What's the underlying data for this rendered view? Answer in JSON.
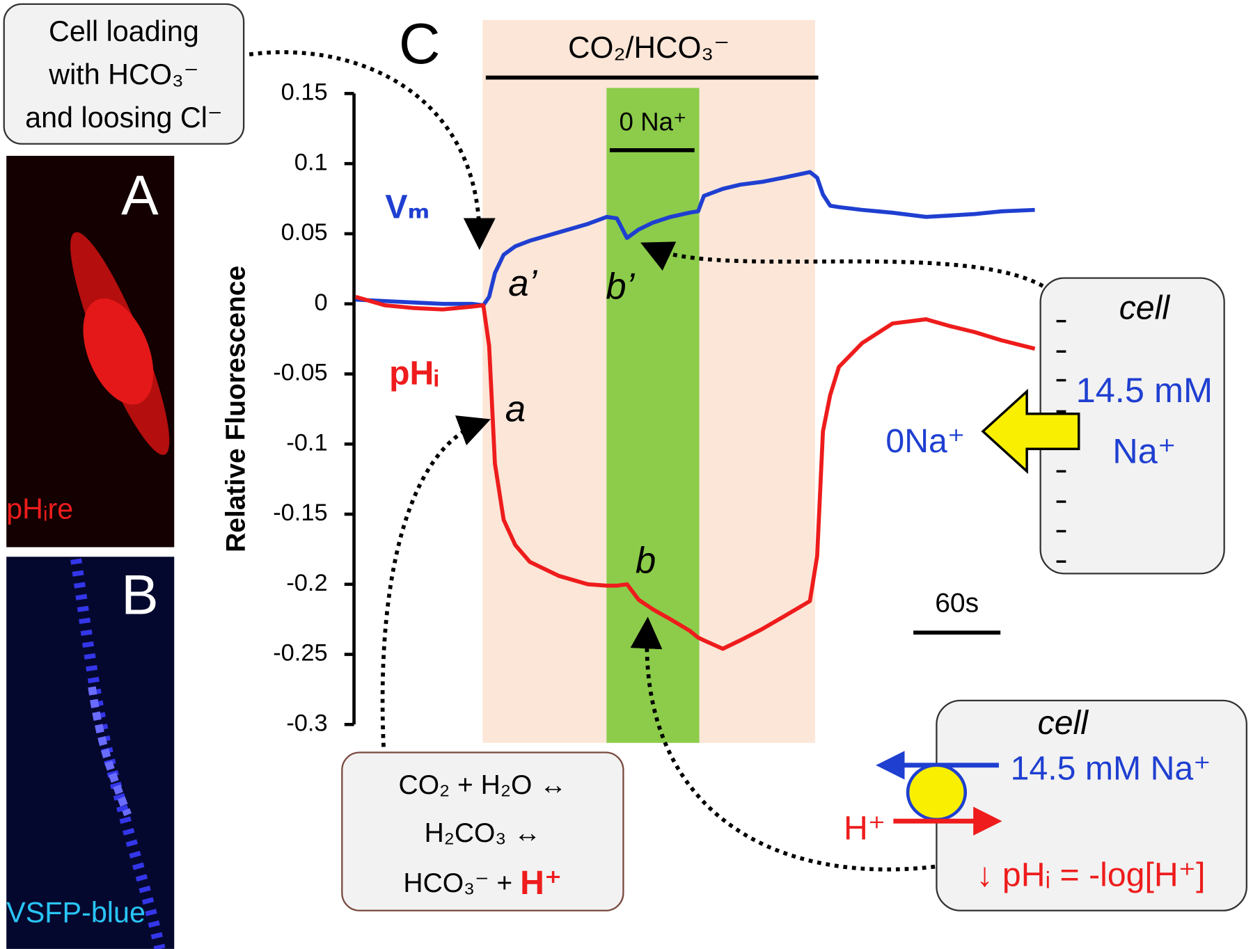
{
  "chart_data": {
    "type": "line",
    "title": "C",
    "ylabel": "Relative Fluorescence",
    "x": [
      0,
      20,
      40,
      60,
      80,
      88,
      92,
      96,
      102,
      110,
      120,
      140,
      160,
      173,
      180,
      187,
      195,
      205,
      217,
      230,
      236,
      240,
      253,
      265,
      280,
      295,
      313,
      318,
      322,
      327,
      333,
      349,
      370,
      393,
      410,
      426,
      445,
      468
    ],
    "xlim": [
      0,
      468
    ],
    "ylim": [
      -0.3,
      0.15
    ],
    "yticks": [
      0.15,
      0.1,
      0.05,
      0,
      -0.05,
      -0.1,
      -0.15,
      -0.2,
      -0.25,
      -0.3
    ],
    "series": [
      {
        "name": "Vₘ",
        "color": "#1f3fd1",
        "values": [
          0.003,
          0.002,
          0.001,
          0.0,
          0.0,
          -0.001,
          0.005,
          0.022,
          0.035,
          0.041,
          0.045,
          0.051,
          0.057,
          0.062,
          0.061,
          0.047,
          0.053,
          0.058,
          0.062,
          0.065,
          0.066,
          0.077,
          0.082,
          0.085,
          0.087,
          0.09,
          0.094,
          0.09,
          0.078,
          0.07,
          0.069,
          0.067,
          0.065,
          0.062,
          0.063,
          0.064,
          0.066,
          0.067
        ]
      },
      {
        "name": "pHᵢ",
        "color": "#ee1c1c",
        "values": [
          0.005,
          -0.001,
          -0.003,
          -0.004,
          -0.002,
          -0.001,
          -0.03,
          -0.114,
          -0.154,
          -0.172,
          -0.184,
          -0.194,
          -0.2,
          -0.201,
          -0.201,
          -0.2,
          -0.211,
          -0.218,
          -0.225,
          -0.233,
          -0.238,
          -0.24,
          -0.246,
          -0.24,
          -0.232,
          -0.223,
          -0.212,
          -0.18,
          -0.091,
          -0.065,
          -0.045,
          -0.028,
          -0.014,
          -0.011,
          -0.016,
          -0.02,
          -0.026,
          -0.032
        ]
      }
    ],
    "bands": [
      {
        "label": "CO₂/HCO₃⁻",
        "start": 87.5,
        "end": 316.6,
        "color": "#fbe6d8"
      },
      {
        "label": "0 Na⁺",
        "start": 172.9,
        "end": 236.8,
        "color": "#8ccc4a"
      }
    ],
    "scalebar": {
      "value": 60,
      "label": "60s"
    },
    "point_labels": [
      "a’",
      "b’",
      "a",
      "b"
    ]
  },
  "panels": [
    {
      "label": "A",
      "caption": "pHᵢre"
    },
    {
      "label": "B",
      "caption": "VSFP-blue"
    }
  ],
  "notes": {
    "loading": [
      "Cell loading",
      "with HCO₃⁻",
      "and loosing Cl⁻"
    ],
    "equation": [
      "CO₂ + H₂O ↔",
      "H₂CO₃ ↔",
      "HCO₃⁻ + ",
      "H⁺"
    ],
    "cell_gradient": {
      "title": "cell",
      "lines": [
        "14.5 mM",
        "Na⁺"
      ],
      "outside": "0Na⁺"
    },
    "cell_exchanger": {
      "title": "cell",
      "sodium": "14.5 mM Na⁺",
      "proton": "H⁺",
      "result": "↓ pHᵢ = -log[H⁺]"
    }
  }
}
